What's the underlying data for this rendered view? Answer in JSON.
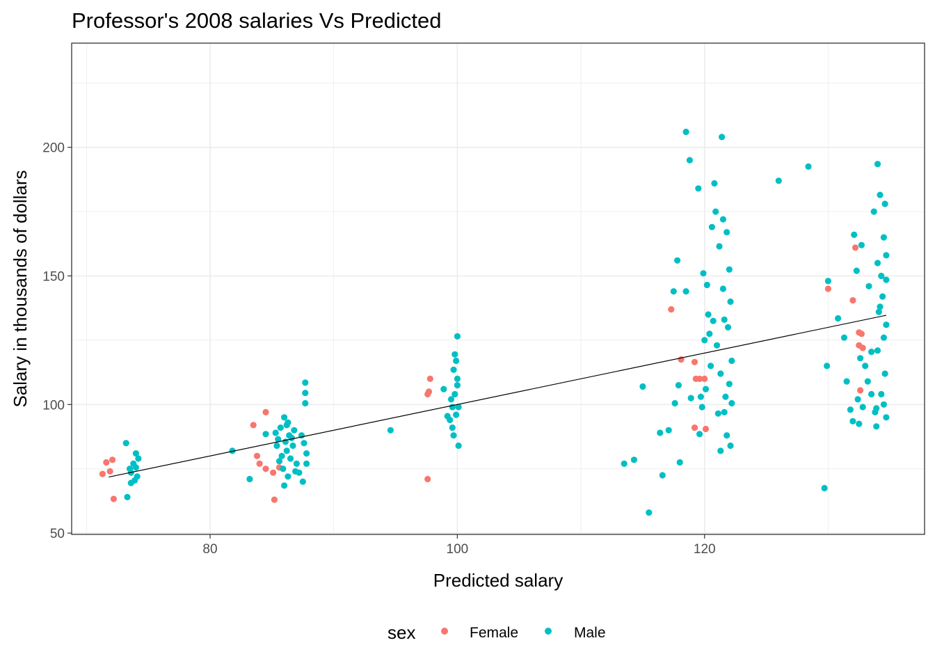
{
  "chart_data": {
    "type": "scatter",
    "title": "Professor's 2008 salaries Vs Predicted",
    "xlabel": "Predicted salary",
    "ylabel": "Salary in thousands of dollars",
    "xlim": [
      68.8,
      137.8
    ],
    "ylim": [
      49.5,
      240.5
    ],
    "xticks": [
      80,
      100,
      120
    ],
    "xtick_labels": [
      "80",
      "100",
      "120"
    ],
    "yticks": [
      50,
      100,
      150,
      200
    ],
    "ytick_labels": [
      "50",
      "100",
      "150",
      "200"
    ],
    "x_minor": [
      70,
      90,
      110,
      130
    ],
    "y_minor": [
      75,
      125,
      175,
      225
    ],
    "grid": true,
    "legend": {
      "title": "sex",
      "position": "bottom",
      "entries": [
        "Female",
        "Male"
      ]
    },
    "colors": {
      "Female": "#F8766D",
      "Male": "#00BFC4",
      "line": "#000000",
      "grid": "#EBEBEB",
      "frame": "#333333"
    },
    "trend_line": {
      "x": [
        71.8,
        134.7
      ],
      "y": [
        71.8,
        134.7
      ]
    },
    "series": [
      {
        "name": "Female",
        "points": [
          [
            71.3,
            73.0
          ],
          [
            71.6,
            77.5
          ],
          [
            71.9,
            74.0
          ],
          [
            72.1,
            78.5
          ],
          [
            72.2,
            63.3
          ],
          [
            83.5,
            92.0
          ],
          [
            83.8,
            80.0
          ],
          [
            84.0,
            77.0
          ],
          [
            84.5,
            75.0
          ],
          [
            84.5,
            97.0
          ],
          [
            85.1,
            73.5
          ],
          [
            85.2,
            63.0
          ],
          [
            85.6,
            75.5
          ],
          [
            97.6,
            104.0
          ],
          [
            97.7,
            105.0
          ],
          [
            97.8,
            110.0
          ],
          [
            97.6,
            71.0
          ],
          [
            117.3,
            137.0
          ],
          [
            118.1,
            117.5
          ],
          [
            119.2,
            116.5
          ],
          [
            119.3,
            110.0
          ],
          [
            119.2,
            91.0
          ],
          [
            119.6,
            110.0
          ],
          [
            120.0,
            110.0
          ],
          [
            120.1,
            90.5
          ],
          [
            130.0,
            145.0
          ],
          [
            132.2,
            161.0
          ],
          [
            132.5,
            128.0
          ],
          [
            132.7,
            127.5
          ],
          [
            132.5,
            123.0
          ],
          [
            132.8,
            122.0
          ],
          [
            132.6,
            105.5
          ],
          [
            132.0,
            140.5
          ]
        ]
      },
      {
        "name": "Male",
        "points": [
          [
            73.2,
            85.0
          ],
          [
            73.3,
            64.0
          ],
          [
            73.5,
            75.0
          ],
          [
            73.6,
            73.5
          ],
          [
            73.6,
            69.5
          ],
          [
            73.8,
            77.0
          ],
          [
            74.0,
            81.0
          ],
          [
            74.1,
            72.0
          ],
          [
            74.2,
            79.0
          ],
          [
            73.9,
            70.5
          ],
          [
            74.0,
            75.5
          ],
          [
            81.8,
            82.0
          ],
          [
            83.2,
            71.0
          ],
          [
            84.5,
            88.5
          ],
          [
            85.3,
            89.0
          ],
          [
            85.4,
            84.0
          ],
          [
            85.5,
            86.5
          ],
          [
            85.6,
            78.0
          ],
          [
            85.7,
            91.0
          ],
          [
            85.8,
            80.0
          ],
          [
            85.9,
            75.0
          ],
          [
            86.0,
            95.0
          ],
          [
            86.0,
            68.5
          ],
          [
            86.1,
            85.5
          ],
          [
            86.2,
            92.0
          ],
          [
            86.2,
            82.0
          ],
          [
            86.3,
            72.0
          ],
          [
            86.4,
            88.0
          ],
          [
            86.5,
            79.0
          ],
          [
            86.6,
            87.0
          ],
          [
            86.7,
            84.0
          ],
          [
            86.8,
            90.0
          ],
          [
            86.9,
            74.0
          ],
          [
            87.0,
            77.0
          ],
          [
            87.2,
            73.5
          ],
          [
            87.4,
            88.0
          ],
          [
            87.5,
            70.0
          ],
          [
            87.6,
            85.0
          ],
          [
            87.7,
            104.5
          ],
          [
            87.7,
            108.5
          ],
          [
            87.7,
            100.5
          ],
          [
            87.8,
            81.0
          ],
          [
            87.8,
            77.0
          ],
          [
            86.3,
            93.0
          ],
          [
            94.6,
            90.0
          ],
          [
            98.9,
            106.0
          ],
          [
            99.2,
            95.5
          ],
          [
            99.4,
            94.0
          ],
          [
            99.5,
            102.0
          ],
          [
            99.6,
            99.0
          ],
          [
            99.6,
            91.0
          ],
          [
            99.7,
            113.5
          ],
          [
            99.7,
            88.0
          ],
          [
            99.8,
            119.5
          ],
          [
            99.8,
            104.0
          ],
          [
            99.9,
            96.0
          ],
          [
            99.9,
            117.0
          ],
          [
            100.0,
            126.5
          ],
          [
            100.0,
            107.5
          ],
          [
            100.1,
            84.0
          ],
          [
            100.1,
            99.0
          ],
          [
            100.0,
            110.0
          ],
          [
            113.5,
            77.0
          ],
          [
            114.3,
            78.5
          ],
          [
            115.0,
            107.0
          ],
          [
            115.5,
            58.0
          ],
          [
            116.4,
            89.0
          ],
          [
            116.6,
            72.5
          ],
          [
            117.1,
            90.0
          ],
          [
            117.5,
            144.0
          ],
          [
            117.6,
            100.5
          ],
          [
            117.8,
            156.0
          ],
          [
            117.9,
            107.5
          ],
          [
            118.0,
            77.5
          ],
          [
            118.5,
            144.0
          ],
          [
            118.5,
            206.0
          ],
          [
            118.8,
            195.0
          ],
          [
            118.9,
            102.5
          ],
          [
            119.5,
            184.0
          ],
          [
            119.6,
            88.5
          ],
          [
            119.7,
            103.0
          ],
          [
            119.8,
            99.0
          ],
          [
            119.9,
            151.0
          ],
          [
            120.0,
            125.0
          ],
          [
            120.1,
            106.0
          ],
          [
            120.2,
            146.5
          ],
          [
            120.3,
            135.0
          ],
          [
            120.4,
            127.5
          ],
          [
            120.5,
            115.0
          ],
          [
            120.6,
            169.0
          ],
          [
            120.7,
            132.5
          ],
          [
            120.8,
            186.0
          ],
          [
            120.9,
            175.0
          ],
          [
            121.0,
            123.0
          ],
          [
            121.1,
            96.5
          ],
          [
            121.2,
            161.5
          ],
          [
            121.3,
            112.0
          ],
          [
            121.4,
            204.0
          ],
          [
            121.5,
            145.0
          ],
          [
            121.6,
            133.0
          ],
          [
            121.7,
            103.0
          ],
          [
            121.8,
            88.0
          ],
          [
            121.9,
            130.0
          ],
          [
            122.0,
            152.5
          ],
          [
            122.0,
            108.0
          ],
          [
            122.1,
            140.0
          ],
          [
            122.1,
            84.0
          ],
          [
            122.2,
            117.0
          ],
          [
            122.2,
            100.5
          ],
          [
            121.8,
            167.0
          ],
          [
            121.5,
            172.0
          ],
          [
            121.3,
            82.0
          ],
          [
            121.6,
            97.0
          ],
          [
            126.0,
            187.0
          ],
          [
            128.4,
            192.5
          ],
          [
            129.7,
            67.5
          ],
          [
            129.9,
            115.0
          ],
          [
            130.0,
            148.0
          ],
          [
            130.8,
            133.5
          ],
          [
            131.3,
            126.0
          ],
          [
            131.5,
            109.0
          ],
          [
            131.8,
            98.0
          ],
          [
            132.0,
            93.5
          ],
          [
            132.1,
            166.0
          ],
          [
            132.3,
            152.0
          ],
          [
            132.4,
            102.0
          ],
          [
            132.5,
            92.5
          ],
          [
            132.6,
            118.0
          ],
          [
            132.7,
            162.0
          ],
          [
            132.8,
            99.0
          ],
          [
            133.0,
            115.0
          ],
          [
            133.2,
            109.0
          ],
          [
            133.3,
            146.0
          ],
          [
            133.5,
            120.5
          ],
          [
            133.7,
            175.0
          ],
          [
            133.9,
            98.5
          ],
          [
            134.0,
            193.5
          ],
          [
            134.0,
            155.0
          ],
          [
            134.1,
            136.0
          ],
          [
            134.2,
            181.5
          ],
          [
            134.3,
            104.0
          ],
          [
            134.4,
            142.0
          ],
          [
            134.5,
            126.0
          ],
          [
            134.5,
            165.0
          ],
          [
            134.6,
            178.0
          ],
          [
            134.6,
            112.0
          ],
          [
            134.7,
            95.0
          ],
          [
            134.7,
            148.5
          ],
          [
            134.7,
            158.0
          ],
          [
            134.7,
            131.0
          ],
          [
            134.3,
            150.0
          ],
          [
            134.0,
            121.0
          ],
          [
            133.8,
            97.0
          ],
          [
            133.5,
            104.0
          ],
          [
            133.9,
            91.5
          ],
          [
            134.2,
            138.0
          ],
          [
            134.5,
            100.0
          ]
        ]
      }
    ]
  }
}
